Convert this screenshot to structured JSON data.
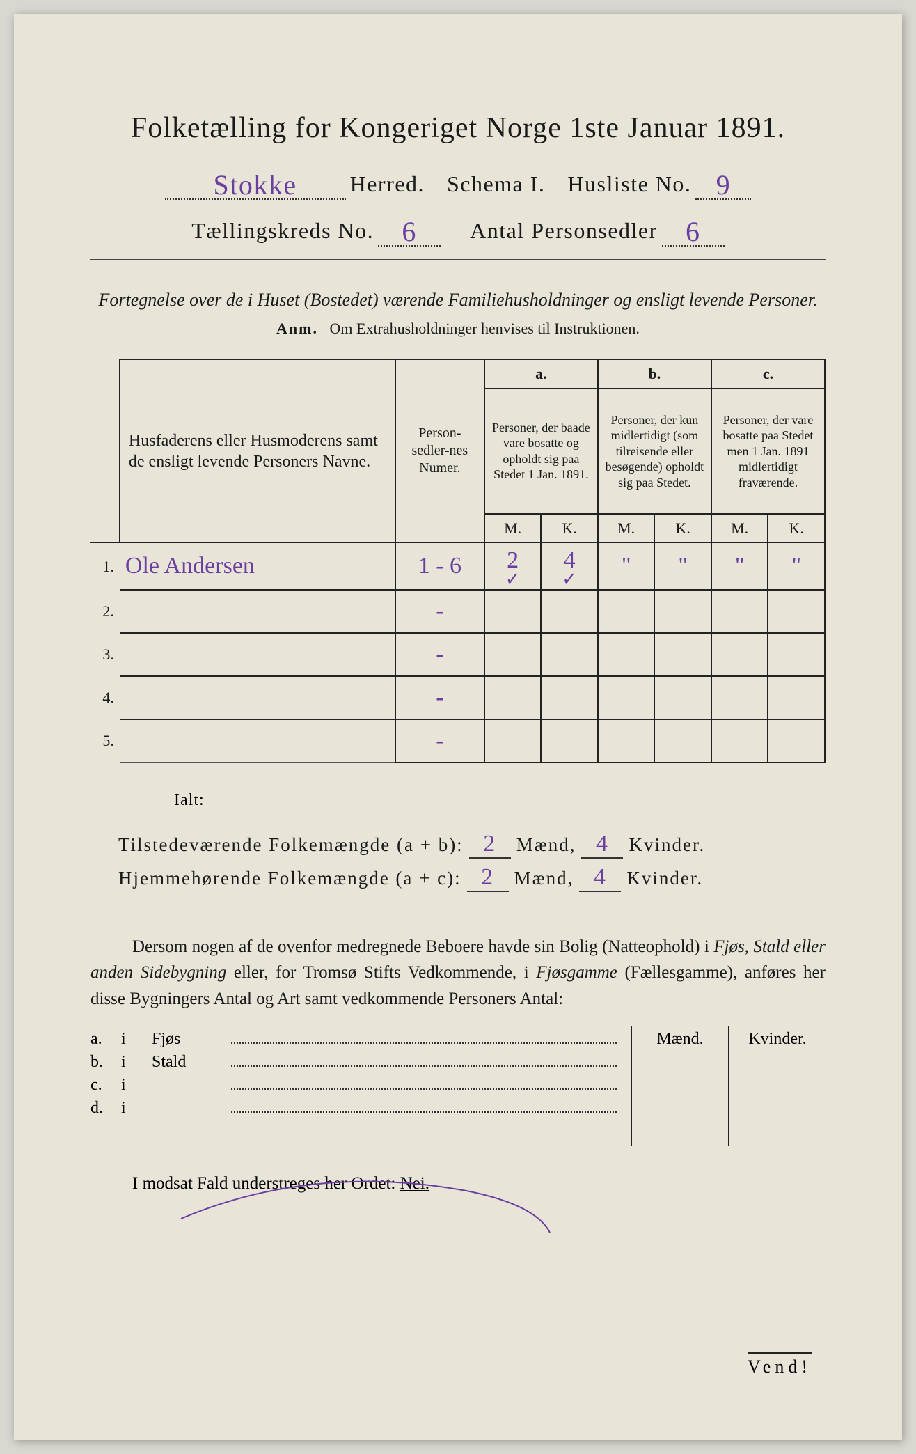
{
  "header": {
    "title": "Folketælling for Kongeriget Norge 1ste Januar 1891.",
    "herred_value": "Stokke",
    "herred_label": "Herred.",
    "schema_label": "Schema I.",
    "husliste_label": "Husliste No.",
    "husliste_value": "9",
    "kreds_label": "Tællingskreds No.",
    "kreds_value": "6",
    "antal_label": "Antal Personsedler",
    "antal_value": "6"
  },
  "subtitle": "Fortegnelse over de i Huset (Bostedet) værende Familiehusholdninger og ensligt levende Personer.",
  "anm_prefix": "Anm.",
  "anm_text": "Om Extrahusholdninger henvises til Instruktionen.",
  "table": {
    "col_names": {
      "names": "Husfaderens eller Husmoderens samt de ensligt levende Personers Navne.",
      "sedler": "Person-sedler-nes Numer.",
      "a_label": "a.",
      "a_text": "Personer, der baade vare bosatte og opholdt sig paa Stedet 1 Jan. 1891.",
      "b_label": "b.",
      "b_text": "Personer, der kun midlertidigt (som tilreisende eller besøgende) opholdt sig paa Stedet.",
      "c_label": "c.",
      "c_text": "Personer, der vare bosatte paa Stedet men 1 Jan. 1891 midlertidigt fraværende.",
      "m": "M.",
      "k": "K."
    },
    "rows": [
      {
        "num": "1.",
        "name": "Ole Andersen",
        "sedler": "1 - 6",
        "a_m": "2",
        "a_k": "4",
        "b_m": "\"",
        "b_k": "\"",
        "c_m": "\"",
        "c_k": "\"",
        "check_m": "✓",
        "check_k": "✓"
      },
      {
        "num": "2.",
        "name": "",
        "sedler": "-",
        "a_m": "",
        "a_k": "",
        "b_m": "",
        "b_k": "",
        "c_m": "",
        "c_k": ""
      },
      {
        "num": "3.",
        "name": "",
        "sedler": "-",
        "a_m": "",
        "a_k": "",
        "b_m": "",
        "b_k": "",
        "c_m": "",
        "c_k": ""
      },
      {
        "num": "4.",
        "name": "",
        "sedler": "-",
        "a_m": "",
        "a_k": "",
        "b_m": "",
        "b_k": "",
        "c_m": "",
        "c_k": ""
      },
      {
        "num": "5.",
        "name": "",
        "sedler": "-",
        "a_m": "",
        "a_k": "",
        "b_m": "",
        "b_k": "",
        "c_m": "",
        "c_k": ""
      }
    ]
  },
  "ialt": "Ialt:",
  "summary": {
    "line1_label": "Tilstedeværende Folkemængde (a + b):",
    "line2_label": "Hjemmehørende Folkemængde (a + c):",
    "maend": "Mænd,",
    "kvinder": "Kvinder.",
    "v1_m": "2",
    "v1_k": "4",
    "v2_m": "2",
    "v2_k": "4"
  },
  "paragraph": {
    "t1": "Dersom nogen af de ovenfor medregnede Beboere havde sin Bolig (Natteophold) i ",
    "i1": "Fjøs, Stald eller anden Sidebygning",
    "t2": " eller, for Tromsø Stifts Vedkommende, i ",
    "i2": "Fjøsgamme",
    "t3": " (Fællesgamme), anføres her disse Bygningers Antal og Art samt vedkommende Personers Antal:"
  },
  "sublist": {
    "maend": "Mænd.",
    "kvinder": "Kvinder.",
    "items": [
      {
        "letter": "a.",
        "i": "i",
        "label": "Fjøs"
      },
      {
        "letter": "b.",
        "i": "i",
        "label": "Stald"
      },
      {
        "letter": "c.",
        "i": "i",
        "label": ""
      },
      {
        "letter": "d.",
        "i": "i",
        "label": ""
      }
    ]
  },
  "final": {
    "t1": "I modsat Fald understreges her Ordet: ",
    "nei": "Nei."
  },
  "vend": "Vend!",
  "colors": {
    "page_bg": "#e8e5d8",
    "ink": "#1a1a1a",
    "handwriting": "#6b3fa0",
    "border": "#222222"
  }
}
